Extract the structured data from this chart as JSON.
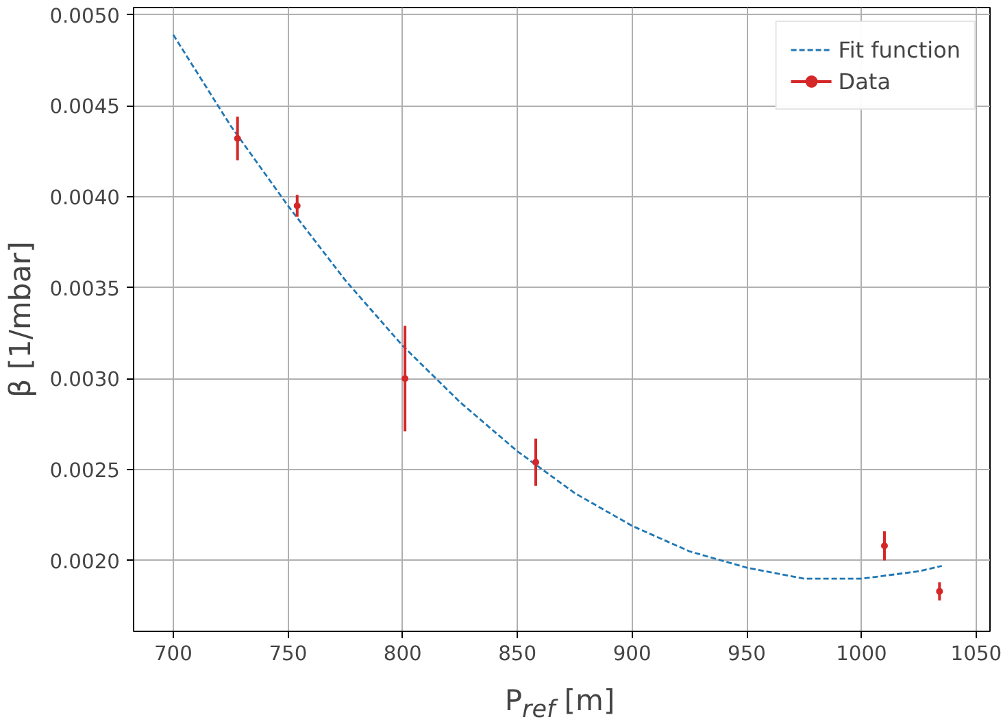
{
  "chart_data": {
    "type": "scatter",
    "xlabel": "P$_{ref}$ [m]",
    "ylabel": "β [1/mbar]",
    "xlim": [
      682.7,
      1056
    ],
    "ylim": [
      0.00161,
      0.00504
    ],
    "xticks": [
      700,
      750,
      800,
      850,
      900,
      950,
      1000,
      1050
    ],
    "yticks": [
      {
        "value": 0.002,
        "label": "0.0020"
      },
      {
        "value": 0.0025,
        "label": "0.0025"
      },
      {
        "value": 0.003,
        "label": "0.0030"
      },
      {
        "value": 0.0035,
        "label": "0.0035"
      },
      {
        "value": 0.004,
        "label": "0.0040"
      },
      {
        "value": 0.0045,
        "label": "0.0045"
      },
      {
        "value": 0.005,
        "label": "0.0050"
      }
    ],
    "grid": true,
    "legend": "top right",
    "series": [
      {
        "name": "Fit function",
        "type": "line",
        "line_style": "dashed",
        "marker": "none",
        "color": "#1f77b4",
        "x": [
          700,
          725,
          750,
          775,
          800,
          825,
          850,
          875,
          900,
          925,
          950,
          975,
          1000,
          1025,
          1035
        ],
        "values": [
          0.00489,
          0.00439,
          0.00395,
          0.00354,
          0.00318,
          0.00287,
          0.0026,
          0.00237,
          0.00219,
          0.00205,
          0.00196,
          0.0019,
          0.0019,
          0.00194,
          0.00197
        ]
      },
      {
        "name": "Data",
        "type": "scatter",
        "marker": "circle",
        "color": "#d62728",
        "x": [
          728,
          754,
          801,
          858,
          1010,
          1034
        ],
        "values": [
          0.00432,
          0.00395,
          0.003,
          0.00254,
          0.00208,
          0.00183
        ],
        "errors": [
          0.00012,
          6e-05,
          0.00029,
          0.00013,
          8e-05,
          5e-05
        ]
      }
    ]
  }
}
